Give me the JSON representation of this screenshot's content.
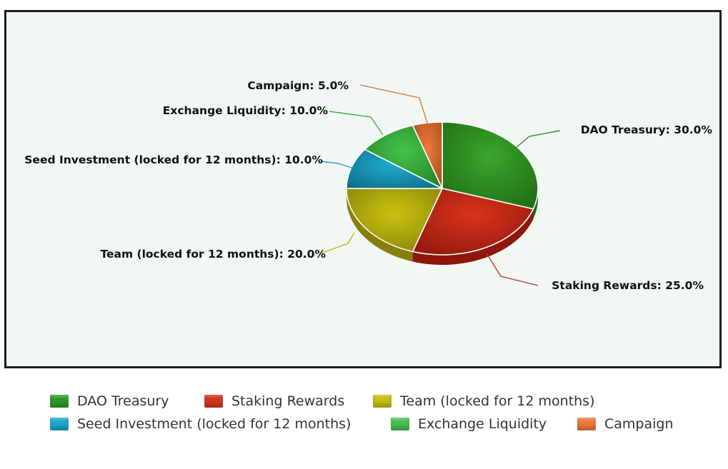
{
  "chart_data": {
    "type": "pie",
    "title": "",
    "start_angle_deg": 0,
    "slices": [
      {
        "label": "DAO Treasury",
        "value": 30.0,
        "display": "DAO Treasury: 30.0%",
        "color": "#3aa52c",
        "dark": "#1f6b16",
        "leader": "#2f8f27"
      },
      {
        "label": "Staking Rewards",
        "value": 25.0,
        "display": "Staking Rewards: 25.0%",
        "color": "#d9341d",
        "dark": "#8e160b",
        "leader": "#c03a25"
      },
      {
        "label": "Team (locked for 12 months)",
        "value": 20.0,
        "display": "Team (locked for 12 months): 20.0%",
        "color": "#c9c20f",
        "dark": "#85800b",
        "leader": "#b7b512"
      },
      {
        "label": "Seed Investment (locked for 12 months)",
        "value": 10.0,
        "display": "Seed Investment (locked for 12 months): 10.0%",
        "color": "#1faccf",
        "dark": "#0d6e86",
        "leader": "#1da2c6"
      },
      {
        "label": "Exchange Liquidity",
        "value": 10.0,
        "display": "Exchange Liquidity: 10.0%",
        "color": "#44c44a",
        "dark": "#237d28",
        "leader": "#3cb34a"
      },
      {
        "label": "Campaign",
        "value": 5.0,
        "display": "Campaign: 5.0%",
        "color": "#ee7a3c",
        "dark": "#a34a1c",
        "leader": "#e07a44"
      }
    ],
    "legend_position": "bottom"
  },
  "legend": {
    "items": [
      {
        "label": "DAO Treasury",
        "color": "#2f9a2a"
      },
      {
        "label": "Staking Rewards",
        "color": "#d4341c"
      },
      {
        "label": "Team (locked for 12 months)",
        "color": "#c4c014"
      },
      {
        "label": "Seed Investment (locked for 12 months)",
        "color": "#1aa8cf"
      },
      {
        "label": "Exchange Liquidity",
        "color": "#44c04c"
      },
      {
        "label": "Campaign",
        "color": "#ea7a3c"
      }
    ]
  }
}
